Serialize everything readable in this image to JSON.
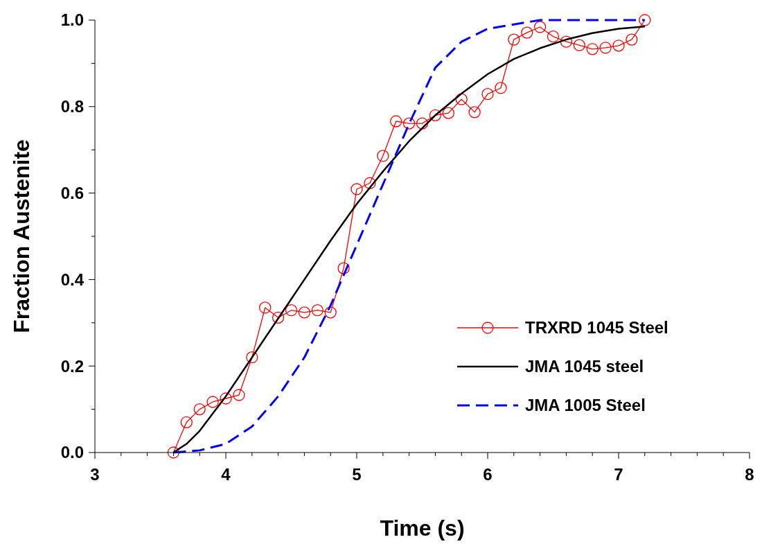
{
  "chart_data": {
    "type": "line",
    "xlabel": "Time (s)",
    "ylabel": "Fraction Austenite",
    "xlim": [
      3,
      8
    ],
    "ylim": [
      0,
      1
    ],
    "xticks": [
      3,
      {
        "value": 3.2,
        "label": null
      },
      {
        "value": 3.4,
        "label": null
      },
      {
        "value": 3.6,
        "label": null
      },
      {
        "value": 3.8,
        "label": null
      },
      4,
      {
        "value": 4.2,
        "label": null
      },
      {
        "value": 4.4,
        "label": null
      },
      {
        "value": 4.6,
        "label": null
      },
      {
        "value": 4.8,
        "label": null
      },
      5,
      {
        "value": 5.2,
        "label": null
      },
      {
        "value": 5.4,
        "label": null
      },
      {
        "value": 5.6,
        "label": null
      },
      {
        "value": 5.8,
        "label": null
      },
      6,
      {
        "value": 6.2,
        "label": null
      },
      {
        "value": 6.4,
        "label": null
      },
      {
        "value": 6.6,
        "label": null
      },
      {
        "value": 6.8,
        "label": null
      },
      7,
      {
        "value": 7.2,
        "label": null
      },
      {
        "value": 7.4,
        "label": null
      },
      {
        "value": 7.6,
        "label": null
      },
      {
        "value": 7.8,
        "label": null
      },
      8
    ],
    "yticks": [
      {
        "value": 0,
        "label": "0.0"
      },
      {
        "value": 0.1,
        "label": null
      },
      {
        "value": 0.2,
        "label": "0.2"
      },
      {
        "value": 0.3,
        "label": null
      },
      {
        "value": 0.4,
        "label": "0.4"
      },
      {
        "value": 0.5,
        "label": null
      },
      {
        "value": 0.6,
        "label": "0.6"
      },
      {
        "value": 0.7,
        "label": null
      },
      {
        "value": 0.8,
        "label": "0.8"
      },
      {
        "value": 0.9,
        "label": null
      },
      {
        "value": 1,
        "label": "1.0"
      }
    ],
    "grid": false,
    "legend": "bottom right",
    "series": [
      {
        "name": "TRXRD 1045 Steel",
        "color": "#ff0000",
        "marker": "circle",
        "line_style": "solid",
        "x": [
          3.6,
          3.7,
          3.8,
          3.9,
          4.0,
          4.1,
          4.2,
          4.3,
          4.4,
          4.5,
          4.6,
          4.7,
          4.8,
          4.9,
          5.0,
          5.1,
          5.2,
          5.3,
          5.4,
          5.5,
          5.6,
          5.7,
          5.8,
          5.9,
          6.0,
          6.1,
          6.2,
          6.3,
          6.4,
          6.5,
          6.6,
          6.7,
          6.8,
          6.9,
          7.0,
          7.1,
          7.2
        ],
        "values": [
          0,
          0.07,
          0.1,
          0.117,
          0.125,
          0.133,
          0.22,
          0.335,
          0.312,
          0.329,
          0.324,
          0.329,
          0.324,
          0.426,
          0.609,
          0.623,
          0.686,
          0.766,
          0.761,
          0.761,
          0.78,
          0.785,
          0.817,
          0.787,
          0.829,
          0.843,
          0.955,
          0.971,
          0.984,
          0.962,
          0.95,
          0.942,
          0.933,
          0.936,
          0.941,
          0.955,
          1.0
        ]
      },
      {
        "name": "JMA 1045 steel",
        "color": "#000000",
        "marker": "none",
        "line_style": "solid",
        "x": [
          3.6,
          3.7,
          3.8,
          3.9,
          4.0,
          4.2,
          4.4,
          4.6,
          4.8,
          5.0,
          5.2,
          5.4,
          5.6,
          5.8,
          6.0,
          6.2,
          6.4,
          6.6,
          6.8,
          7.0,
          7.2
        ],
        "values": [
          0,
          0.02,
          0.05,
          0.09,
          0.13,
          0.22,
          0.31,
          0.4,
          0.49,
          0.575,
          0.65,
          0.72,
          0.78,
          0.83,
          0.875,
          0.91,
          0.935,
          0.955,
          0.97,
          0.98,
          0.985
        ]
      },
      {
        "name": "JMA 1005 Steel",
        "color": "#0000ff",
        "marker": "none",
        "line_style": "dashed",
        "x": [
          3.6,
          3.8,
          4.0,
          4.2,
          4.4,
          4.6,
          4.8,
          5.0,
          5.2,
          5.4,
          5.6,
          5.8,
          6.0,
          6.2,
          6.4,
          6.8,
          7.2
        ],
        "values": [
          0,
          0.005,
          0.02,
          0.06,
          0.13,
          0.22,
          0.34,
          0.48,
          0.62,
          0.76,
          0.89,
          0.95,
          0.98,
          0.99,
          1.0,
          1.0,
          1.0
        ]
      }
    ]
  }
}
